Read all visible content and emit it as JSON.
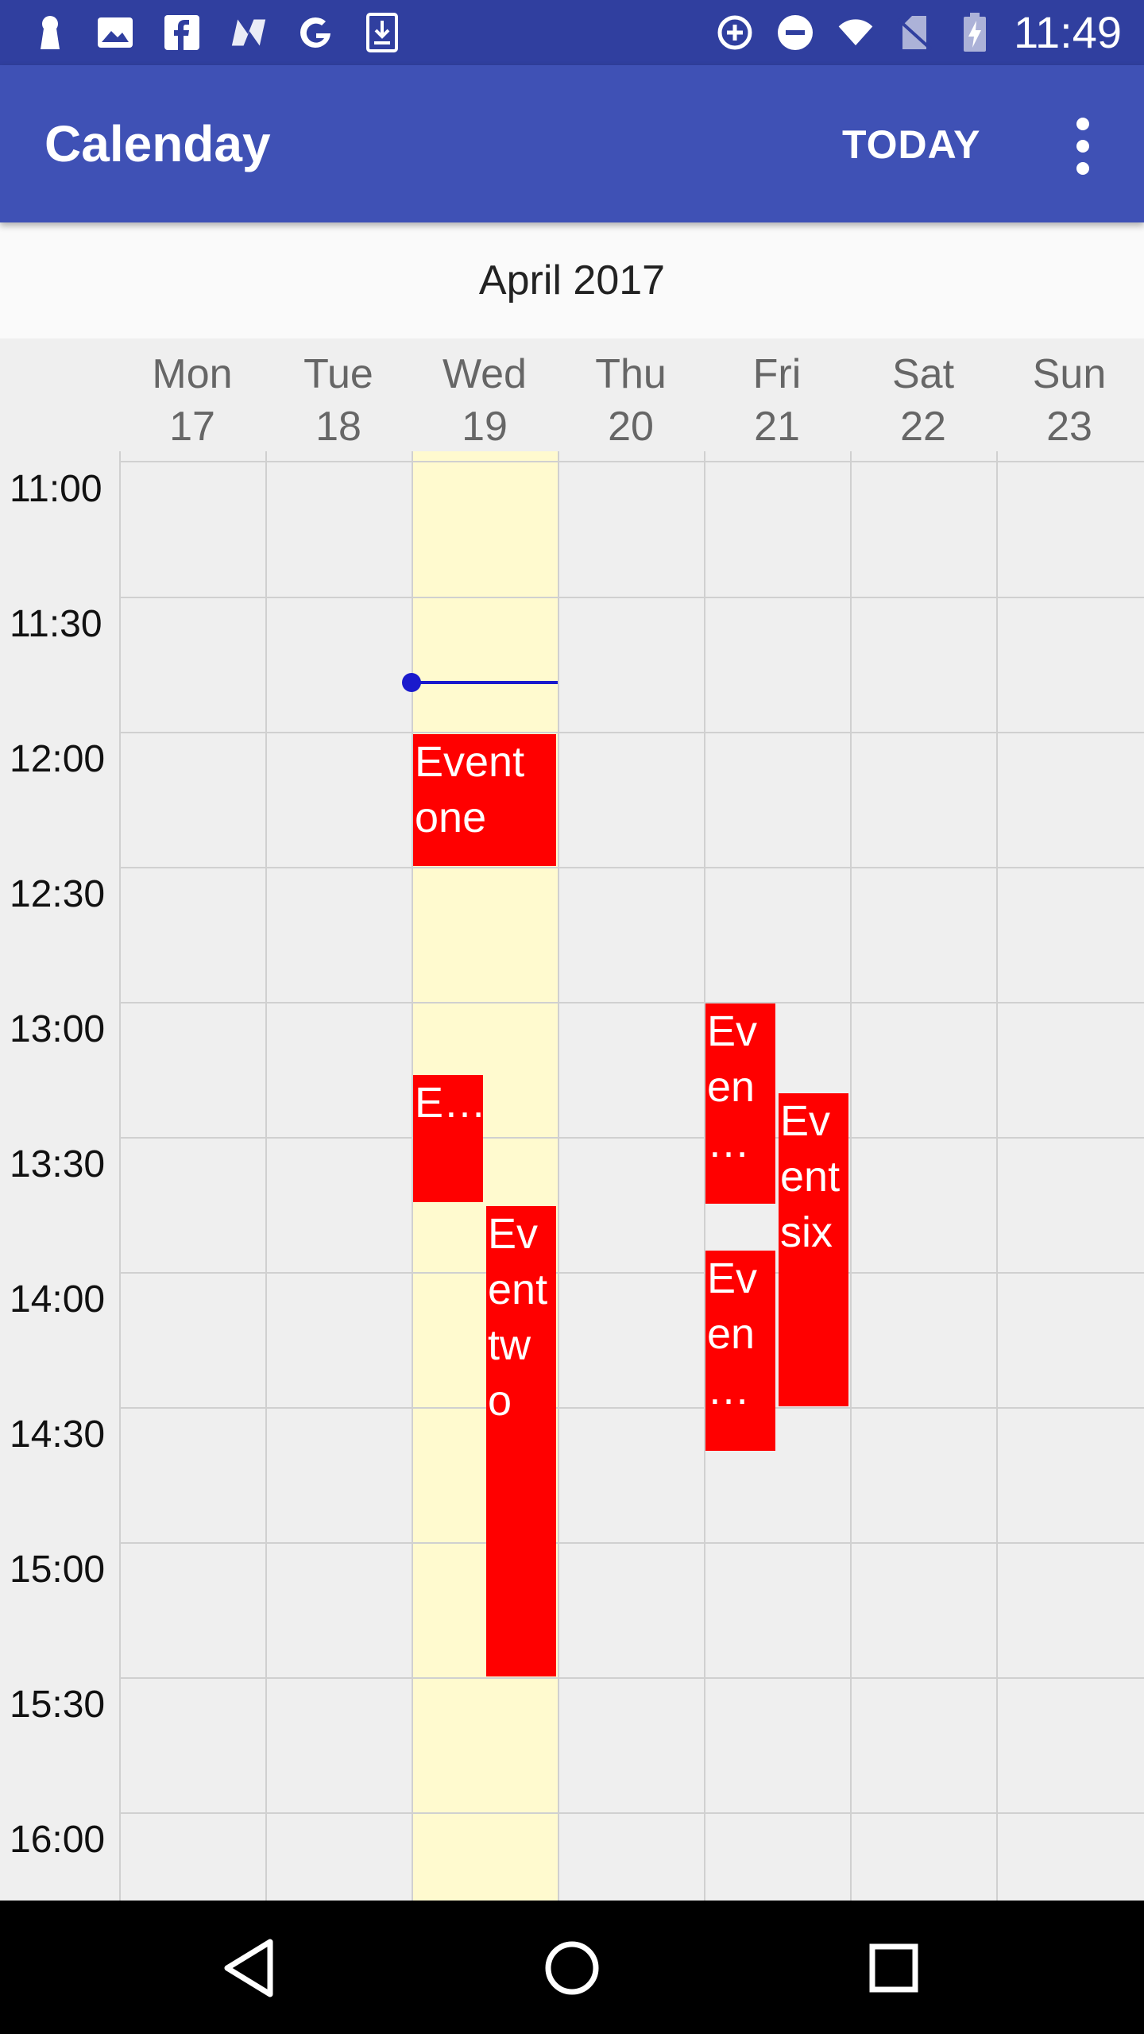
{
  "status_bar": {
    "time": "11:49",
    "left_icons": [
      "keyhole-icon",
      "image-icon",
      "facebook-icon",
      "n-logo-icon",
      "google-icon",
      "download-icon"
    ],
    "right_icons": [
      "data-saver-icon",
      "do-not-disturb-icon",
      "wifi-icon",
      "no-sim-icon",
      "battery-charging-icon"
    ]
  },
  "app_bar": {
    "title": "Calenday",
    "today_label": "TODAY",
    "overflow_icon": "more-vert-icon",
    "color": "#3f51b5",
    "status_color": "#303f9f"
  },
  "month_label": "April 2017",
  "days": [
    {
      "name": "Mon",
      "num": "17"
    },
    {
      "name": "Tue",
      "num": "18"
    },
    {
      "name": "Wed",
      "num": "19"
    },
    {
      "name": "Thu",
      "num": "20"
    },
    {
      "name": "Fri",
      "num": "21"
    },
    {
      "name": "Sat",
      "num": "22"
    },
    {
      "name": "Sun",
      "num": "23"
    }
  ],
  "times": [
    "11:00",
    "11:30",
    "12:00",
    "12:30",
    "13:00",
    "13:30",
    "14:00",
    "14:30",
    "15:00",
    "15:30",
    "16:00"
  ],
  "today_highlight_color": "#fffacf",
  "event_color": "#ff0000",
  "current_time_color": "#1a1acc",
  "events": [
    {
      "label": "Event one",
      "day": "Wed 19"
    },
    {
      "label": "E…",
      "day": "Wed 19"
    },
    {
      "label": "Event two",
      "display": "Ev ent tw o",
      "day": "Wed 19"
    },
    {
      "label": "Even…",
      "display": "Ev en …",
      "day": "Fri 21"
    },
    {
      "label": "Event six",
      "display": "Ev ent six",
      "day": "Fri 21"
    },
    {
      "label": "Even…",
      "display": "Ev en …",
      "day": "Fri 21"
    }
  ],
  "nav_bar": [
    "back-icon",
    "home-icon",
    "recents-icon"
  ]
}
